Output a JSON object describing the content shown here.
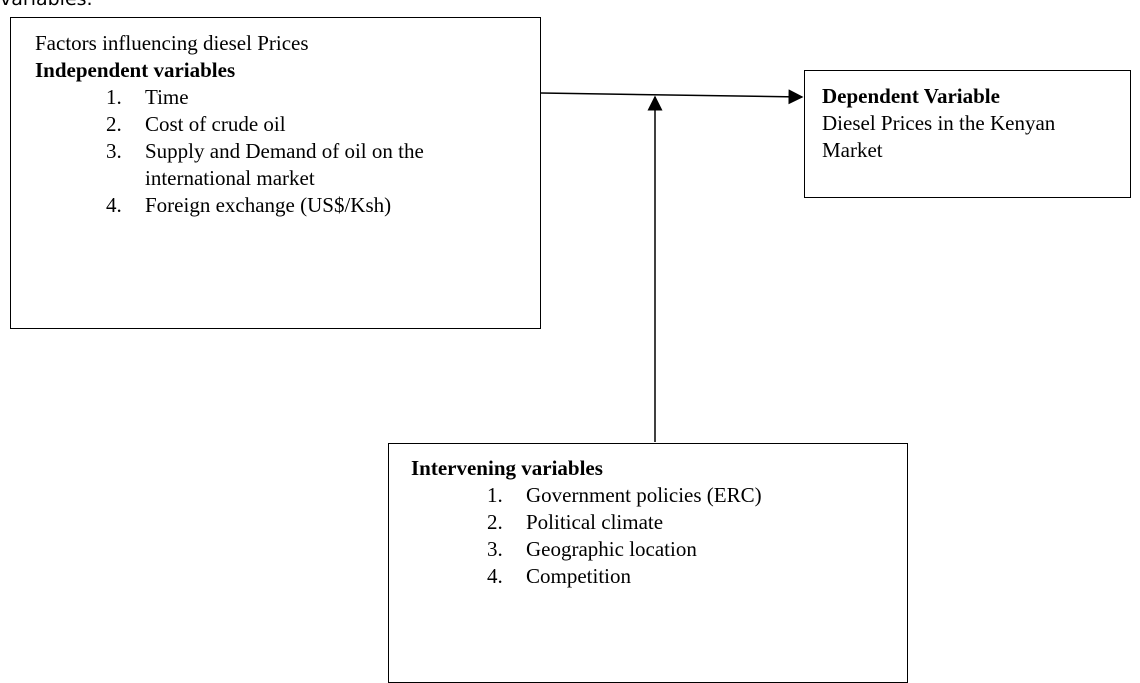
{
  "page_fragment": "variables.",
  "nodes": [
    {
      "subtitle": "Factors influencing diesel Prices",
      "heading": "Independent variables",
      "items": [
        "Time",
        "Cost of crude oil",
        "Supply and Demand of oil on the international market",
        "Foreign exchange (US$/Ksh)"
      ]
    },
    {
      "heading": "Dependent Variable",
      "text": "Diesel Prices in the Kenyan Market"
    },
    {
      "heading": "Intervening variables",
      "items": [
        "Government policies (ERC)",
        "Political climate",
        "Geographic location",
        "Competition"
      ]
    }
  ]
}
